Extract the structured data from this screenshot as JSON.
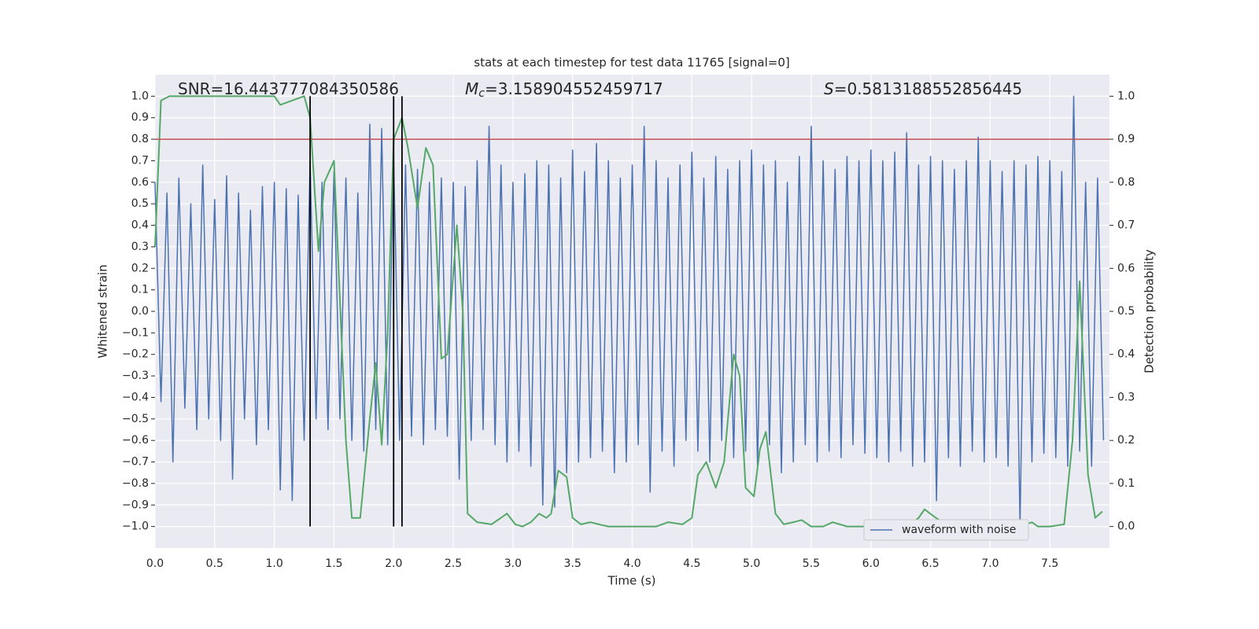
{
  "chart_data": {
    "type": "line",
    "title": "stats at each timestep for test data 11765 [signal=0]",
    "xlabel": "Time (s)",
    "ylabel": "Whitened strain",
    "y2label": "Detection probability",
    "annotations": [
      {
        "text": "SNR=16.443777084350586"
      },
      {
        "symbol": "M",
        "sub": "c",
        "text": "=3.158904552459717"
      },
      {
        "symbol": "S",
        "text": "=0.5813188552856445"
      }
    ],
    "xlim": [
      0,
      8
    ],
    "ylim": [
      -1.1,
      1.1
    ],
    "y2lim": [
      -0.05,
      1.05
    ],
    "grid": true,
    "legend": "lower right",
    "hline": 0.8,
    "hline_color": "#c44e52",
    "vlines": [
      1.3,
      2.0,
      2.07
    ],
    "vline_ylim": [
      -1,
      1
    ],
    "vline_color": "#000000",
    "xticks": [
      {
        "value": 0,
        "label": "0.0"
      },
      0.5,
      {
        "value": 1,
        "label": "1.0"
      },
      1.5,
      {
        "value": 2,
        "label": "2.0"
      },
      2.5,
      {
        "value": 3,
        "label": "3.0"
      },
      3.5,
      {
        "value": 4,
        "label": "4.0"
      },
      4.5,
      {
        "value": 5,
        "label": "5.0"
      },
      5.5,
      {
        "value": 6,
        "label": "6.0"
      },
      6.5,
      {
        "value": 7,
        "label": "7.0"
      },
      7.5
    ],
    "yticks": [
      {
        "value": -1,
        "label": "−1.0"
      },
      {
        "value": -0.9,
        "label": "−0.9"
      },
      {
        "value": -0.8,
        "label": "−0.8"
      },
      {
        "value": -0.7,
        "label": "−0.7"
      },
      {
        "value": -0.6,
        "label": "−0.6"
      },
      {
        "value": -0.5,
        "label": "−0.5"
      },
      {
        "value": -0.4,
        "label": "−0.4"
      },
      {
        "value": -0.3,
        "label": "−0.3"
      },
      {
        "value": -0.2,
        "label": "−0.2"
      },
      {
        "value": -0.1,
        "label": "−0.1"
      },
      {
        "value": 0,
        "label": "0.0"
      },
      0.1,
      0.2,
      0.3,
      0.4,
      0.5,
      0.6,
      0.7,
      0.8,
      0.9,
      {
        "value": 1,
        "label": "1.0"
      }
    ],
    "y2ticks": [
      {
        "value": 0,
        "label": "0.0"
      },
      0.1,
      0.2,
      0.3,
      0.4,
      0.5,
      0.6,
      0.7,
      0.8,
      0.9,
      {
        "value": 1,
        "label": "1.0"
      }
    ],
    "series": [
      {
        "name": "waveform with noise",
        "color": "#4c72b0",
        "x": [
          0,
          0.05,
          0.1,
          0.15,
          0.2,
          0.25,
          0.3,
          0.35,
          0.4,
          0.45,
          0.5,
          0.55,
          0.6,
          0.65,
          0.7,
          0.75,
          0.8,
          0.85,
          0.9,
          0.95,
          1,
          1.05,
          1.1,
          1.15,
          1.2,
          1.25,
          1.3,
          1.35,
          1.4,
          1.45,
          1.5,
          1.55,
          1.6,
          1.65,
          1.7,
          1.75,
          1.8,
          1.85,
          1.9,
          1.95,
          2,
          2.05,
          2.1,
          2.15,
          2.2,
          2.25,
          2.3,
          2.35,
          2.4,
          2.45,
          2.5,
          2.55,
          2.6,
          2.65,
          2.7,
          2.75,
          2.8,
          2.85,
          2.9,
          2.95,
          3,
          3.05,
          3.1,
          3.15,
          3.2,
          3.25,
          3.3,
          3.35,
          3.4,
          3.45,
          3.5,
          3.55,
          3.6,
          3.65,
          3.7,
          3.75,
          3.8,
          3.85,
          3.9,
          3.95,
          4,
          4.05,
          4.1,
          4.15,
          4.2,
          4.25,
          4.3,
          4.35,
          4.4,
          4.45,
          4.5,
          4.55,
          4.6,
          4.65,
          4.7,
          4.75,
          4.8,
          4.85,
          4.9,
          4.95,
          5,
          5.05,
          5.1,
          5.15,
          5.2,
          5.25,
          5.3,
          5.35,
          5.4,
          5.45,
          5.5,
          5.55,
          5.6,
          5.65,
          5.7,
          5.75,
          5.8,
          5.85,
          5.9,
          5.95,
          6,
          6.05,
          6.1,
          6.15,
          6.2,
          6.25,
          6.3,
          6.35,
          6.4,
          6.45,
          6.5,
          6.55,
          6.6,
          6.65,
          6.7,
          6.75,
          6.8,
          6.85,
          6.9,
          6.95,
          7,
          7.05,
          7.1,
          7.15,
          7.2,
          7.25,
          7.3,
          7.35,
          7.4,
          7.45,
          7.5,
          7.55,
          7.6,
          7.65,
          7.7,
          7.75,
          7.8,
          7.85,
          7.9,
          7.95
        ],
        "values": [
          0.6,
          -0.42,
          0.55,
          -0.7,
          0.62,
          -0.45,
          0.5,
          -0.55,
          0.68,
          -0.5,
          0.52,
          -0.6,
          0.63,
          -0.78,
          0.55,
          -0.5,
          0.47,
          -0.62,
          0.58,
          -0.55,
          0.6,
          -0.83,
          0.57,
          -0.88,
          0.54,
          -0.6,
          0.7,
          -0.5,
          0.6,
          -0.55,
          0.65,
          -0.5,
          0.62,
          -0.6,
          0.55,
          -0.65,
          0.87,
          -0.55,
          0.85,
          -0.62,
          0.72,
          -0.6,
          0.68,
          -0.58,
          0.66,
          -0.62,
          0.6,
          -0.55,
          0.62,
          -0.58,
          0.6,
          -0.78,
          0.58,
          -0.6,
          0.7,
          -0.55,
          0.86,
          -0.62,
          0.68,
          -0.7,
          0.6,
          -0.65,
          0.64,
          -0.72,
          0.7,
          -0.9,
          0.68,
          -0.91,
          0.62,
          -0.75,
          0.75,
          -0.7,
          0.65,
          -0.68,
          0.78,
          -0.65,
          0.7,
          -0.75,
          0.62,
          -0.7,
          0.68,
          -0.62,
          0.86,
          -0.84,
          0.7,
          -0.65,
          0.62,
          -0.72,
          0.68,
          -0.6,
          0.74,
          -0.65,
          0.62,
          -0.7,
          0.72,
          -0.6,
          0.66,
          -0.68,
          0.7,
          -0.65,
          0.75,
          -0.72,
          0.68,
          -0.62,
          0.7,
          -0.75,
          0.6,
          -0.7,
          0.72,
          -0.62,
          0.86,
          -0.7,
          0.7,
          -0.65,
          0.66,
          -0.68,
          0.72,
          -0.62,
          0.7,
          -0.66,
          0.75,
          -0.68,
          0.7,
          -0.7,
          0.74,
          -0.65,
          0.83,
          -0.72,
          0.68,
          -0.7,
          0.72,
          -0.88,
          0.7,
          -0.68,
          0.66,
          -0.72,
          0.7,
          -0.65,
          0.81,
          -0.7,
          0.7,
          -0.68,
          0.65,
          -0.72,
          0.7,
          -0.99,
          0.68,
          -0.7,
          0.72,
          -0.66,
          0.7,
          -0.68,
          0.65,
          -0.72,
          1.0,
          -0.65,
          0.6,
          -0.72,
          0.62,
          -0.6
        ]
      },
      {
        "color": "#55a868",
        "axis": "y2",
        "x": [
          0,
          0.05,
          0.12,
          0.5,
          1,
          1.05,
          1.25,
          1.3,
          1.37,
          1.42,
          1.5,
          1.6,
          1.65,
          1.72,
          1.8,
          1.85,
          1.9,
          1.95,
          2,
          2.07,
          2.12,
          2.2,
          2.27,
          2.33,
          2.4,
          2.45,
          2.53,
          2.58,
          2.62,
          2.7,
          2.82,
          2.95,
          3.02,
          3.08,
          3.15,
          3.22,
          3.28,
          3.32,
          3.38,
          3.45,
          3.5,
          3.57,
          3.65,
          3.72,
          3.8,
          4,
          4.2,
          4.3,
          4.42,
          4.5,
          4.55,
          4.62,
          4.7,
          4.77,
          4.85,
          4.9,
          4.95,
          5.02,
          5.07,
          5.12,
          5.2,
          5.27,
          5.35,
          5.42,
          5.5,
          5.6,
          5.68,
          5.8,
          6,
          6.17,
          6.35,
          6.4,
          6.45,
          6.52,
          6.6,
          6.9,
          7.2,
          7.3,
          7.35,
          7.4,
          7.5,
          7.62,
          7.69,
          7.75,
          7.82,
          7.88,
          7.94
        ],
        "values": [
          0.65,
          0.99,
          1,
          1,
          1,
          0.98,
          1,
          0.95,
          0.64,
          0.8,
          0.85,
          0.2,
          0.02,
          0.02,
          0.25,
          0.38,
          0.19,
          0.45,
          0.9,
          0.95,
          0.88,
          0.74,
          0.88,
          0.84,
          0.39,
          0.4,
          0.7,
          0.5,
          0.03,
          0.01,
          0.005,
          0.03,
          0.005,
          0,
          0.01,
          0.03,
          0.02,
          0.03,
          0.13,
          0.115,
          0.02,
          0.005,
          0.01,
          0.005,
          0,
          0,
          0,
          0.01,
          0.005,
          0.02,
          0.12,
          0.15,
          0.09,
          0.15,
          0.4,
          0.35,
          0.09,
          0.07,
          0.18,
          0.22,
          0.03,
          0.005,
          0.01,
          0.015,
          0,
          0,
          0.01,
          0,
          0,
          0.005,
          0.01,
          0.02,
          0.04,
          0.025,
          0.01,
          0,
          0,
          0.005,
          0.01,
          0,
          0,
          0.005,
          0.2,
          0.57,
          0.12,
          0.02,
          0.035
        ]
      }
    ]
  }
}
